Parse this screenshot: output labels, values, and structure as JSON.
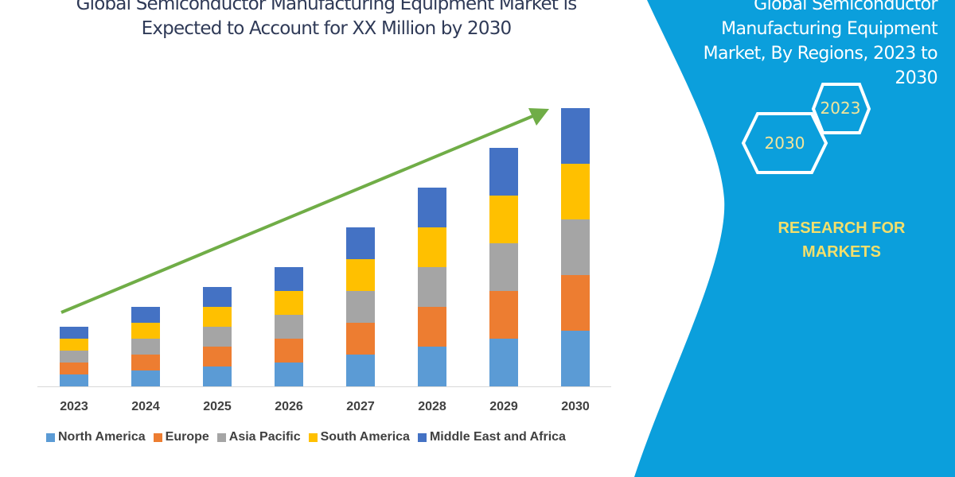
{
  "title": [
    "Global Semiconductor Manufacturing Equipment Market is",
    "Expected to Account for XX Million by 2030"
  ],
  "panel": {
    "title": [
      "Global Semiconductor",
      "Manufacturing Equipment",
      "Market, By Regions, 2023 to",
      "2030"
    ],
    "hex_start": "2023",
    "hex_end": "2030",
    "brand": [
      "RESEARCH FOR",
      "MARKETS"
    ],
    "background_color": "#0b9fdc"
  },
  "chart_data": {
    "type": "bar",
    "stacked": true,
    "categories": [
      "2023",
      "2024",
      "2025",
      "2026",
      "2027",
      "2028",
      "2029",
      "2030"
    ],
    "series": [
      {
        "name": "North America",
        "color": "#5b9bd5",
        "values": [
          15,
          20,
          25,
          30,
          40,
          50,
          60,
          70
        ]
      },
      {
        "name": "Europe",
        "color": "#ed7d31",
        "values": [
          15,
          20,
          25,
          30,
          40,
          50,
          60,
          70
        ]
      },
      {
        "name": "Asia Pacific",
        "color": "#a5a5a5",
        "values": [
          15,
          20,
          25,
          30,
          40,
          50,
          60,
          70
        ]
      },
      {
        "name": "South America",
        "color": "#ffc000",
        "values": [
          15,
          20,
          25,
          30,
          40,
          50,
          60,
          70
        ]
      },
      {
        "name": "Middle East and Africa",
        "color": "#4472c4",
        "values": [
          15,
          20,
          25,
          30,
          40,
          50,
          60,
          70
        ]
      }
    ],
    "ylim": [
      0,
      350
    ],
    "y_axis_shown": false,
    "grid": false,
    "legend": "bottom",
    "trend_arrow_color": "#70ad47"
  }
}
